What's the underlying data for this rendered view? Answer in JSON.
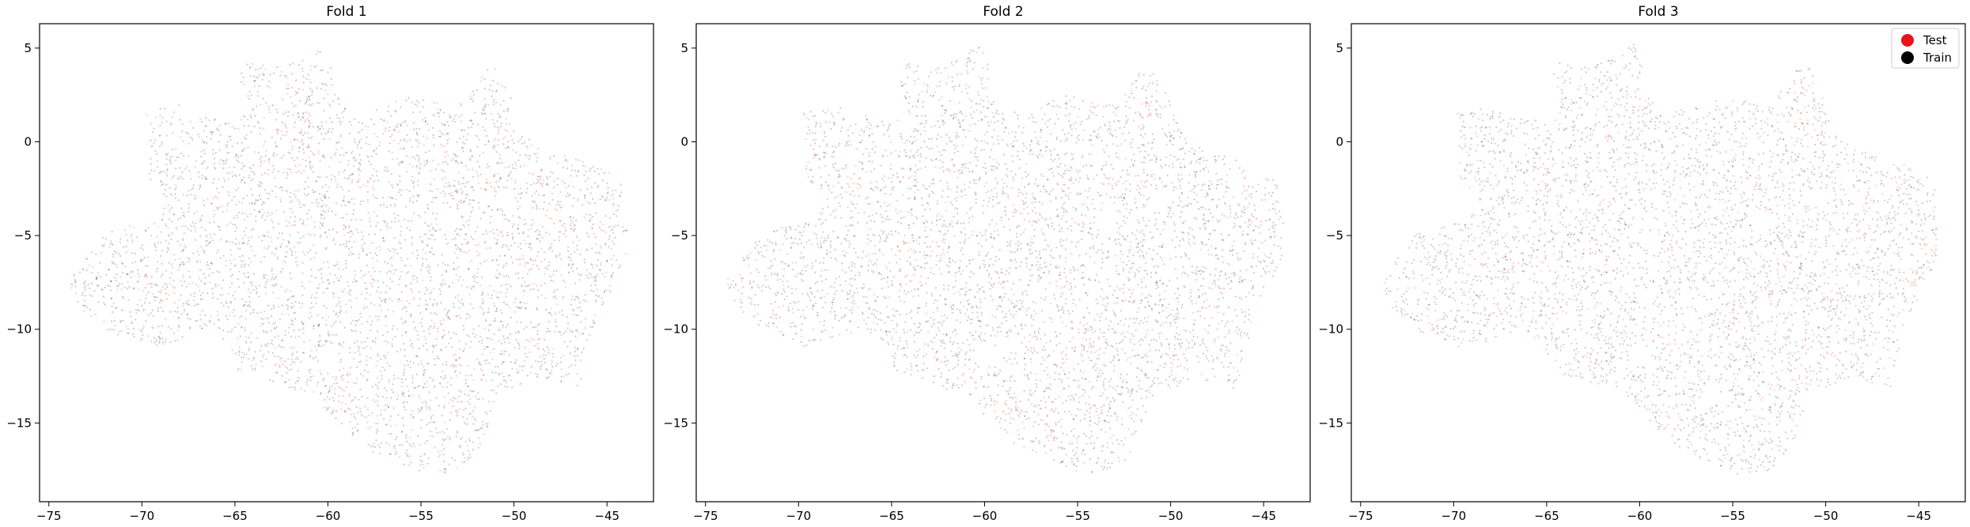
{
  "figure": {
    "background": "#ffffff"
  },
  "chart_data": [
    {
      "type": "scatter",
      "title": "Fold 1",
      "xlim": [
        -75.5,
        -42.5
      ],
      "ylim": [
        -19.2,
        6.3
      ],
      "x_ticks": [
        -75,
        -70,
        -65,
        -60,
        -55,
        -50,
        -45
      ],
      "y_ticks": [
        5,
        0,
        -5,
        -10,
        -15
      ],
      "grid": false,
      "legend": null,
      "series": [
        {
          "name": "Test",
          "color": "#e8141b"
        },
        {
          "name": "Train",
          "color": "#000000"
        }
      ]
    },
    {
      "type": "scatter",
      "title": "Fold 2",
      "xlim": [
        -75.5,
        -42.5
      ],
      "ylim": [
        -19.2,
        6.3
      ],
      "x_ticks": [
        -75,
        -70,
        -65,
        -60,
        -55,
        -50,
        -45
      ],
      "y_ticks": [
        5,
        0,
        -5,
        -10,
        -15
      ],
      "grid": false,
      "legend": null,
      "series": [
        {
          "name": "Test",
          "color": "#e8141b"
        },
        {
          "name": "Train",
          "color": "#000000"
        }
      ]
    },
    {
      "type": "scatter",
      "title": "Fold 3",
      "xlim": [
        -75.5,
        -42.5
      ],
      "ylim": [
        -19.2,
        6.3
      ],
      "x_ticks": [
        -75,
        -70,
        -65,
        -60,
        -55,
        -50,
        -45
      ],
      "y_ticks": [
        5,
        0,
        -5,
        -10,
        -15
      ],
      "grid": false,
      "legend": "upper-right",
      "series": [
        {
          "name": "Test",
          "color": "#e8141b"
        },
        {
          "name": "Train",
          "color": "#000000"
        }
      ]
    }
  ],
  "region_outline": [
    [
      -73.8,
      -7.3
    ],
    [
      -72.2,
      -5.0
    ],
    [
      -70.5,
      -4.4
    ],
    [
      -69.2,
      -4.2
    ],
    [
      -68.6,
      -3.0
    ],
    [
      -69.6,
      -2.1
    ],
    [
      -69.8,
      -1.2
    ],
    [
      -69.6,
      0.5
    ],
    [
      -69.8,
      1.6
    ],
    [
      -67.8,
      2.0
    ],
    [
      -67.2,
      1.2
    ],
    [
      -66.5,
      1.5
    ],
    [
      -65.0,
      0.9
    ],
    [
      -64.5,
      1.4
    ],
    [
      -64.2,
      2.0
    ],
    [
      -64.8,
      3.5
    ],
    [
      -64.3,
      4.2
    ],
    [
      -62.5,
      4.0
    ],
    [
      -61.2,
      4.6
    ],
    [
      -60.3,
      5.2
    ],
    [
      -59.8,
      4.3
    ],
    [
      -59.8,
      2.8
    ],
    [
      -58.8,
      1.6
    ],
    [
      -57.0,
      1.9
    ],
    [
      -55.5,
      2.5
    ],
    [
      -54.4,
      2.2
    ],
    [
      -53.5,
      2.0
    ],
    [
      -52.5,
      2.6
    ],
    [
      -51.6,
      3.8
    ],
    [
      -50.9,
      4.0
    ],
    [
      -50.0,
      2.0
    ],
    [
      -49.3,
      0.2
    ],
    [
      -48.0,
      -0.5
    ],
    [
      -47.0,
      -0.8
    ],
    [
      -45.6,
      -1.3
    ],
    [
      -44.5,
      -1.8
    ],
    [
      -44.1,
      -2.6
    ],
    [
      -43.9,
      -4.5
    ],
    [
      -44.0,
      -6.2
    ],
    [
      -44.6,
      -7.5
    ],
    [
      -45.0,
      -8.6
    ],
    [
      -45.6,
      -9.2
    ],
    [
      -45.8,
      -10.5
    ],
    [
      -46.2,
      -11.8
    ],
    [
      -46.3,
      -13.3
    ],
    [
      -47.0,
      -13.0
    ],
    [
      -48.5,
      -12.6
    ],
    [
      -50.0,
      -13.2
    ],
    [
      -50.8,
      -13.0
    ],
    [
      -51.2,
      -14.5
    ],
    [
      -51.5,
      -15.6
    ],
    [
      -52.2,
      -16.8
    ],
    [
      -53.2,
      -17.6
    ],
    [
      -54.5,
      -17.8
    ],
    [
      -55.8,
      -17.3
    ],
    [
      -57.5,
      -16.6
    ],
    [
      -58.3,
      -16.2
    ],
    [
      -59.0,
      -15.4
    ],
    [
      -60.2,
      -14.4
    ],
    [
      -60.5,
      -13.6
    ],
    [
      -61.8,
      -13.3
    ],
    [
      -63.5,
      -12.6
    ],
    [
      -64.8,
      -12.2
    ],
    [
      -65.1,
      -11.5
    ],
    [
      -65.3,
      -10.7
    ],
    [
      -66.6,
      -10.0
    ],
    [
      -67.7,
      -10.6
    ],
    [
      -68.5,
      -10.8
    ],
    [
      -69.6,
      -11.0
    ],
    [
      -70.5,
      -10.6
    ],
    [
      -71.8,
      -10.1
    ],
    [
      -72.5,
      -9.5
    ],
    [
      -73.2,
      -9.0
    ],
    [
      -73.8,
      -7.9
    ]
  ],
  "region_holes": [
    {
      "center": [
        -53.5,
        -4.2
      ],
      "radius": 0.6
    },
    {
      "center": [
        -50.5,
        -3.0
      ],
      "radius": 0.5
    },
    {
      "center": [
        -60.0,
        -11.4
      ],
      "radius": 0.6
    }
  ],
  "scatter_style": {
    "test_share": 0.33,
    "test_opacity": 0.22,
    "train_opacity": 0.2,
    "point_count": 4500
  }
}
